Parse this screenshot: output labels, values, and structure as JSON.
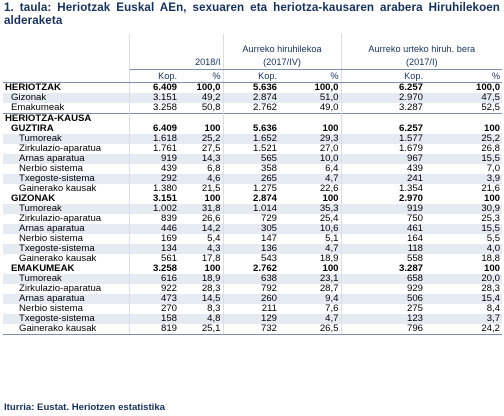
{
  "title": "1. taula: Heriotzak Euskal AEn, sexuaren eta heriotza-kausaren arabera Hiruhilekoen alderaketa",
  "headers": {
    "col_2018": "2018/I",
    "col_aurreko_hiru": "Aurreko hiruhilekoa",
    "col_aurreko_hiru_sub": "(2017/IV)",
    "col_aurreko_urte": "Aurreko urteko hiruh. bera",
    "col_aurreko_urte_sub": "(2017/I)",
    "kop": "Kop.",
    "pct": "%"
  },
  "rows": [
    {
      "kind": "bold",
      "indent": 0,
      "label": "HERIOTZAK",
      "v": [
        "6.409",
        "100,0",
        "5.636",
        "100,0",
        "6.257",
        "100,0"
      ]
    },
    {
      "kind": "zebra",
      "indent": 1,
      "label": "Gizonak",
      "v": [
        "3.151",
        "49,2",
        "2.874",
        "51,0",
        "2.970",
        "47,5"
      ]
    },
    {
      "kind": "plain",
      "indent": 1,
      "label": "Emakumeak",
      "v": [
        "3.258",
        "50,8",
        "2.762",
        "49,0",
        "3.287",
        "52,5"
      ]
    },
    {
      "kind": "section",
      "indent": 0,
      "label": "HERIOTZA-KAUSA",
      "v": [
        "",
        "",
        "",
        "",
        "",
        ""
      ]
    },
    {
      "kind": "bold",
      "indent": 1,
      "label": "GUZTIRA",
      "v": [
        "6.409",
        "100",
        "5.636",
        "100",
        "6.257",
        "100"
      ]
    },
    {
      "kind": "zebra",
      "indent": 2,
      "label": "Tumoreak",
      "v": [
        "1.618",
        "25,2",
        "1.652",
        "29,3",
        "1.577",
        "25,2"
      ]
    },
    {
      "kind": "plain",
      "indent": 2,
      "label": "Zirkulazio-aparatua",
      "v": [
        "1.761",
        "27,5",
        "1.521",
        "27,0",
        "1.679",
        "26,8"
      ]
    },
    {
      "kind": "zebra",
      "indent": 2,
      "label": "Arnas aparatua",
      "v": [
        "919",
        "14,3",
        "565",
        "10,0",
        "967",
        "15,5"
      ]
    },
    {
      "kind": "plain",
      "indent": 2,
      "label": "Nerbio sistema",
      "v": [
        "439",
        "6,8",
        "358",
        "6,4",
        "439",
        "7,0"
      ]
    },
    {
      "kind": "zebra",
      "indent": 2,
      "label": "Txegoste-sistema",
      "v": [
        "292",
        "4,6",
        "265",
        "4,7",
        "241",
        "3,9"
      ]
    },
    {
      "kind": "plain",
      "indent": 2,
      "label": "Gainerako kausak",
      "v": [
        "1.380",
        "21,5",
        "1.275",
        "22,6",
        "1.354",
        "21,6"
      ]
    },
    {
      "kind": "bold",
      "indent": 1,
      "label": "GIZONAK",
      "v": [
        "3.151",
        "100",
        "2.874",
        "100",
        "2.970",
        "100"
      ]
    },
    {
      "kind": "zebra",
      "indent": 2,
      "label": "Tumoreak",
      "v": [
        "1.002",
        "31,8",
        "1.014",
        "35,3",
        "919",
        "30,9"
      ]
    },
    {
      "kind": "plain",
      "indent": 2,
      "label": "Zirkulazio-aparatua",
      "v": [
        "839",
        "26,6",
        "729",
        "25,4",
        "750",
        "25,3"
      ]
    },
    {
      "kind": "zebra",
      "indent": 2,
      "label": "Arnas aparatua",
      "v": [
        "446",
        "14,2",
        "305",
        "10,6",
        "461",
        "15,5"
      ]
    },
    {
      "kind": "plain",
      "indent": 2,
      "label": "Nerbio sistema",
      "v": [
        "169",
        "5,4",
        "147",
        "5,1",
        "164",
        "5,5"
      ]
    },
    {
      "kind": "zebra",
      "indent": 2,
      "label": "Txegoste-sistema",
      "v": [
        "134",
        "4,3",
        "136",
        "4,7",
        "118",
        "4,0"
      ]
    },
    {
      "kind": "plain",
      "indent": 2,
      "label": "Gainerako kausak",
      "v": [
        "561",
        "17,8",
        "543",
        "18,9",
        "558",
        "18,8"
      ]
    },
    {
      "kind": "bold",
      "indent": 1,
      "label": "EMAKUMEAK",
      "v": [
        "3.258",
        "100",
        "2.762",
        "100",
        "3.287",
        "100"
      ]
    },
    {
      "kind": "zebra",
      "indent": 2,
      "label": "Tumoreak",
      "v": [
        "616",
        "18,9",
        "638",
        "23,1",
        "658",
        "20,0"
      ]
    },
    {
      "kind": "plain",
      "indent": 2,
      "label": "Zirkulazio-aparatua",
      "v": [
        "922",
        "28,3",
        "792",
        "28,7",
        "929",
        "28,3"
      ]
    },
    {
      "kind": "zebra",
      "indent": 2,
      "label": "Arnas aparatua",
      "v": [
        "473",
        "14,5",
        "260",
        "9,4",
        "506",
        "15,4"
      ]
    },
    {
      "kind": "plain",
      "indent": 2,
      "label": "Nerbio sistema",
      "v": [
        "270",
        "8,3",
        "211",
        "7,6",
        "275",
        "8,4"
      ]
    },
    {
      "kind": "zebra",
      "indent": 2,
      "label": "Txegoste-sistema",
      "v": [
        "158",
        "4,8",
        "129",
        "4,7",
        "123",
        "3,7"
      ]
    },
    {
      "kind": "plain",
      "indent": 2,
      "label": "Gainerako kausak",
      "v": [
        "819",
        "25,1",
        "732",
        "26,5",
        "796",
        "24,2"
      ]
    }
  ],
  "source": "Iturria: Eustat. Heriotzen estatistika"
}
